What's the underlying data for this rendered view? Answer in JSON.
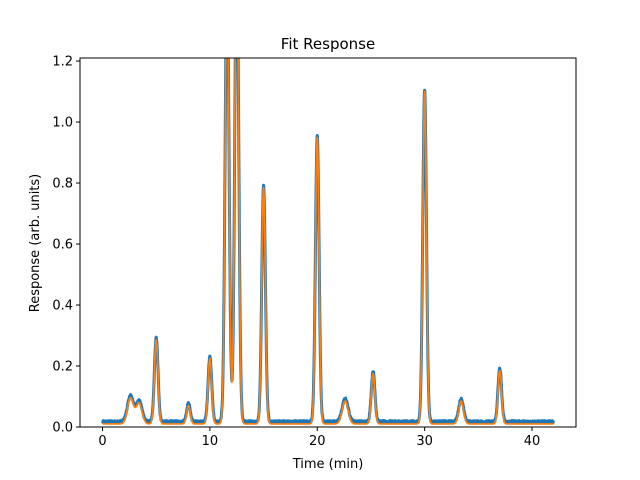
{
  "chart_data": {
    "type": "line",
    "title": "Fit Response",
    "xlabel": "Time (min)",
    "ylabel": "Response (arb. units)",
    "xlim": [
      -2.1,
      44.1
    ],
    "ylim": [
      0.0,
      1.21
    ],
    "xticks": [
      0,
      10,
      20,
      30,
      40
    ],
    "yticks": [
      0.0,
      0.2,
      0.4,
      0.6,
      0.8,
      1.0,
      1.2
    ],
    "xtick_labels": [
      "0",
      "10",
      "20",
      "30",
      "40"
    ],
    "ytick_labels": [
      "0.0",
      "0.2",
      "0.4",
      "0.6",
      "0.8",
      "1.0",
      "1.2"
    ],
    "grid": false,
    "legend": "none",
    "colors": {
      "measured": "#1f77b4",
      "fit": "#ff7f0e"
    },
    "x_range": [
      0,
      42
    ],
    "baseline": {
      "measured": 0.017,
      "fit": 0.01
    },
    "noise_amplitude": 0.004,
    "peaks": [
      {
        "t": 2.6,
        "height": 0.085,
        "width": 0.28
      },
      {
        "t": 3.4,
        "height": 0.068,
        "width": 0.28
      },
      {
        "t": 5.0,
        "height": 0.275,
        "width": 0.17
      },
      {
        "t": 8.0,
        "height": 0.06,
        "width": 0.17
      },
      {
        "t": 10.0,
        "height": 0.215,
        "width": 0.17
      },
      {
        "t": 11.6,
        "height": 1.5,
        "width": 0.18
      },
      {
        "t": 12.5,
        "height": 1.6,
        "width": 0.18
      },
      {
        "t": 15.0,
        "height": 0.775,
        "width": 0.17
      },
      {
        "t": 20.0,
        "height": 0.94,
        "width": 0.17
      },
      {
        "t": 22.6,
        "height": 0.075,
        "width": 0.28
      },
      {
        "t": 25.2,
        "height": 0.165,
        "width": 0.17
      },
      {
        "t": 30.0,
        "height": 1.09,
        "width": 0.17
      },
      {
        "t": 33.4,
        "height": 0.075,
        "width": 0.22
      },
      {
        "t": 37.0,
        "height": 0.175,
        "width": 0.17
      }
    ],
    "series": [
      {
        "role": "measured"
      },
      {
        "role": "fit"
      }
    ]
  }
}
